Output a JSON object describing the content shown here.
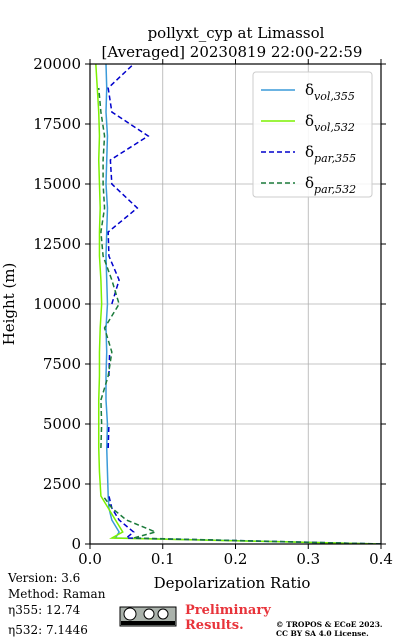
{
  "chart_data": {
    "type": "line",
    "title": "pollyxt_cyp at Limassol",
    "subtitle": "[Averaged] 20230819 22:00-22:59",
    "x_label": "Depolarization Ratio",
    "y_label": "Height (m)",
    "xlim": [
      0,
      0.4
    ],
    "ylim": [
      0,
      20000
    ],
    "xticks": [
      {
        "value": 0,
        "label": "0.0"
      },
      0.1,
      0.2,
      0.3,
      0.4
    ],
    "yticks": [
      0,
      2500,
      5000,
      7500,
      10000,
      12500,
      15000,
      17500,
      20000
    ],
    "grid": true,
    "legend": "upper right",
    "heights": [
      0,
      250,
      500,
      1000,
      1500,
      2000,
      3000,
      4000,
      5000,
      6000,
      7000,
      8000,
      9000,
      10000,
      11000,
      12000,
      13000,
      14000,
      15000,
      16000,
      17000,
      18000,
      19000,
      20000
    ],
    "series": [
      {
        "name": "δ",
        "subscript": "vol,355",
        "color": "#3a9ad9",
        "dashed": false,
        "values": [
          0.4,
          0.035,
          0.04,
          0.03,
          0.026,
          0.025,
          0.024,
          0.023,
          0.024,
          0.022,
          0.022,
          0.023,
          0.022,
          0.024,
          0.023,
          0.022,
          0.023,
          0.024,
          0.022,
          0.023,
          0.024,
          0.022,
          0.023,
          0.022
        ]
      },
      {
        "name": "δ",
        "subscript": "vol,532",
        "color": "#7cf000",
        "dashed": false,
        "values": [
          0.4,
          0.03,
          0.045,
          0.035,
          0.025,
          0.015,
          0.013,
          0.012,
          0.012,
          0.012,
          0.013,
          0.013,
          0.014,
          0.016,
          0.015,
          0.013,
          0.013,
          0.014,
          0.013,
          0.012,
          0.013,
          0.012,
          0.01,
          0.008
        ]
      },
      {
        "name": "δ",
        "subscript": "par,355",
        "color": "#0000cc",
        "dashed": true,
        "values": [
          0.4,
          0.05,
          0.06,
          0.04,
          0.03,
          0.026,
          null,
          0.025,
          0.026,
          null,
          0.026,
          0.027,
          null,
          0.03,
          0.04,
          0.026,
          0.025,
          0.065,
          0.03,
          0.028,
          0.08,
          0.03,
          0.025,
          0.06
        ]
      },
      {
        "name": "δ",
        "subscript": "par,532",
        "color": "#1a7a3a",
        "dashed": true,
        "values": [
          0.4,
          0.06,
          0.09,
          0.05,
          0.03,
          0.018,
          null,
          0.015,
          0.016,
          0.015,
          0.025,
          0.03,
          0.02,
          0.04,
          0.03,
          0.018,
          0.015,
          0.02,
          0.018,
          0.018,
          0.02,
          0.015,
          0.012,
          null
        ]
      }
    ]
  },
  "footer": {
    "version": "Version: 3.6",
    "method": "Method: Raman",
    "eta355": "η355:  12.74",
    "eta532": "η532: 7.1446",
    "preliminary": [
      "Preliminary",
      "Results."
    ],
    "copyright": [
      "© TROPOS & ECoE 2023.",
      "CC BY SA 4.0 License."
    ]
  }
}
